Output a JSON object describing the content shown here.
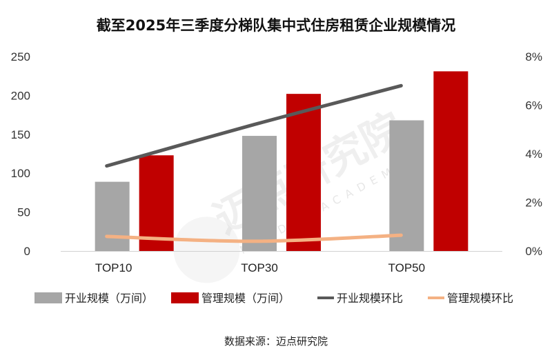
{
  "chart_data": {
    "type": "bar",
    "title": "截至2025年三季度分梯队集中式住房租赁企业规模情况",
    "categories": [
      "TOP10",
      "TOP30",
      "TOP50"
    ],
    "y_left": {
      "min": 0,
      "max": 250,
      "ticks": [
        "0",
        "50",
        "100",
        "150",
        "200",
        "250"
      ]
    },
    "y_right": {
      "min": 0,
      "max": 8,
      "ticks": [
        "0%",
        "2%",
        "4%",
        "6%",
        "8%"
      ]
    },
    "series": [
      {
        "name": "开业规模（万间）",
        "kind": "bar",
        "axis": "left",
        "color": "#a6a6a6",
        "values": [
          89,
          148,
          168
        ]
      },
      {
        "name": "管理规模（万间）",
        "kind": "bar",
        "axis": "left",
        "color": "#c00000",
        "values": [
          123,
          202,
          231
        ]
      },
      {
        "name": "开业规模环比",
        "kind": "line",
        "axis": "right",
        "color": "#595959",
        "values": [
          3.5,
          5.2,
          6.8
        ]
      },
      {
        "name": "管理规模环比",
        "kind": "line",
        "axis": "right",
        "color": "#f4b183",
        "values": [
          0.6,
          0.4,
          0.65
        ]
      }
    ],
    "source": "数据来源：迈点研究院"
  },
  "watermark": {
    "cn": "迈点研究院",
    "en": "MEADIN ACADEMY"
  }
}
